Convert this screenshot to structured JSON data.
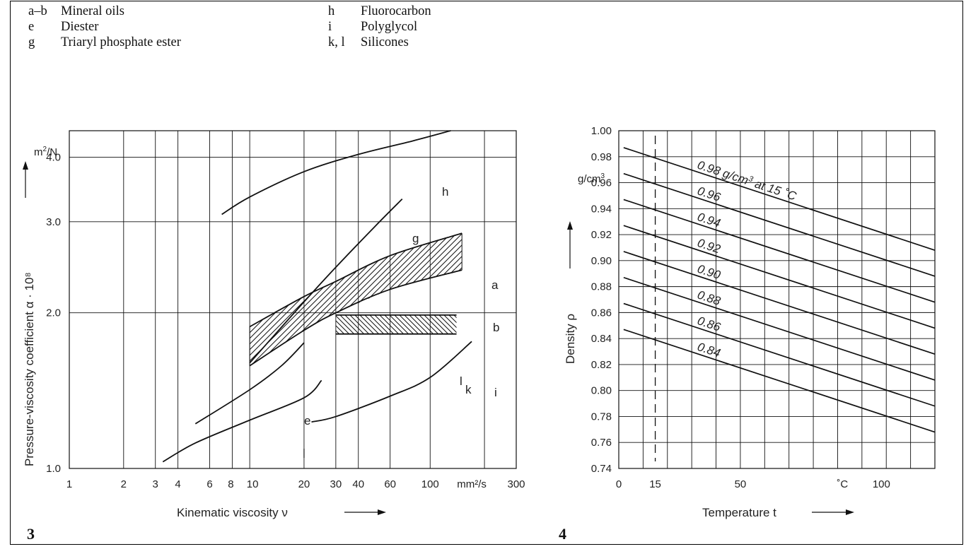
{
  "legend": [
    {
      "key": "a–b",
      "name": "Mineral oils"
    },
    {
      "key": "e",
      "name": "Diester"
    },
    {
      "key": "g",
      "name": "Triaryl phosphate ester"
    },
    {
      "key": "h",
      "name": "Fluorocarbon"
    },
    {
      "key": "i",
      "name": "Polyglycol"
    },
    {
      "key": "k, l",
      "name": "Silicones"
    }
  ],
  "figures": {
    "left": "3",
    "right": "4"
  },
  "colors": {
    "line": "#111111",
    "grid": "#111111",
    "background": "#ffffff"
  },
  "chart_data": [
    {
      "type": "line",
      "ylabel": "Pressure-viscosity coefficient  α · 10⁸",
      "yunit": "m²/N",
      "xlabel": "Kinematic viscosity  ν",
      "xunit": "mm²/s",
      "xscale": "log",
      "yscale": "log",
      "xlim": [
        1,
        300
      ],
      "ylim": [
        1.0,
        4.5
      ],
      "xticks": [
        "1",
        "2",
        "3",
        "4",
        "6",
        "8",
        "10",
        "20",
        "30",
        "40",
        "60",
        "100",
        "mm²/s",
        "300"
      ],
      "yticks": [
        "1.0",
        "2.0",
        "3.0",
        "4.0"
      ],
      "grid": true,
      "series": [
        {
          "name": "h",
          "points": [
            [
              7,
              3.1
            ],
            [
              10,
              3.35
            ],
            [
              20,
              3.75
            ],
            [
              40,
              4.05
            ],
            [
              80,
              4.3
            ],
            [
              130,
              4.5
            ]
          ]
        },
        {
          "name": "g",
          "points": [
            [
              10,
              1.6
            ],
            [
              20,
              2.1
            ],
            [
              30,
              2.45
            ],
            [
              50,
              2.95
            ],
            [
              70,
              3.32
            ]
          ]
        },
        {
          "name": "a",
          "points": [
            [
              10,
              1.88
            ],
            [
              20,
              2.15
            ],
            [
              30,
              2.3
            ],
            [
              60,
              2.58
            ],
            [
              150,
              2.85
            ]
          ]
        },
        {
          "name": "b",
          "points": [
            [
              10,
              1.58
            ],
            [
              20,
              1.85
            ],
            [
              30,
              2.0
            ],
            [
              60,
              2.22
            ],
            [
              150,
              2.42
            ]
          ]
        },
        {
          "name": "l",
          "points": [
            [
              30,
              1.98
            ],
            [
              140,
              1.98
            ]
          ]
        },
        {
          "name": "k",
          "points": [
            [
              30,
              1.82
            ],
            [
              140,
              1.82
            ]
          ]
        },
        {
          "name": "e",
          "points": [
            [
              3.3,
              1.03
            ],
            [
              5,
              1.12
            ],
            [
              10,
              1.24
            ],
            [
              20,
              1.37
            ],
            [
              25,
              1.48
            ]
          ]
        },
        {
          "name": "i",
          "points": [
            [
              22,
              1.23
            ],
            [
              30,
              1.26
            ],
            [
              60,
              1.38
            ],
            [
              100,
              1.5
            ],
            [
              170,
              1.76
            ]
          ]
        },
        {
          "name": "",
          "points": [
            [
              5,
              1.22
            ],
            [
              10,
              1.42
            ],
            [
              15,
              1.58
            ],
            [
              20,
              1.75
            ]
          ]
        }
      ],
      "band_label": "a–b Mineral oils (hatched)"
    },
    {
      "type": "line",
      "ylabel": "Density  ρ",
      "yunit": "g/cm³",
      "xlabel": "Temperature  t",
      "xunit": "˚C",
      "xlim": [
        0,
        130
      ],
      "ylim": [
        0.74,
        1.0
      ],
      "xticks": [
        "0",
        "15",
        "50",
        "˚C",
        "100"
      ],
      "yticks": [
        "1.00",
        "0.98",
        "0.96",
        "0.94",
        "0.92",
        "0.90",
        "0.88",
        "0.86",
        "0.84",
        "0.82",
        "0.80",
        "0.78",
        "0.76",
        "0.74"
      ],
      "grid": true,
      "reference_line": {
        "x": 15,
        "style": "dashed"
      },
      "series": [
        {
          "name": "0.98 g/cm³ at 15 ˚C",
          "label": "0.98 g/cm³ at 15 ˚C",
          "x": [
            2,
            130
          ],
          "y": [
            0.987,
            0.908
          ]
        },
        {
          "name": "0.96",
          "label": "0.96",
          "x": [
            2,
            130
          ],
          "y": [
            0.967,
            0.888
          ]
        },
        {
          "name": "0.94",
          "label": "0.94",
          "x": [
            2,
            130
          ],
          "y": [
            0.947,
            0.868
          ]
        },
        {
          "name": "0.92",
          "label": "0.92",
          "x": [
            2,
            130
          ],
          "y": [
            0.927,
            0.848
          ]
        },
        {
          "name": "0.90",
          "label": "0.90",
          "x": [
            2,
            130
          ],
          "y": [
            0.907,
            0.828
          ]
        },
        {
          "name": "0.88",
          "label": "0.88",
          "x": [
            2,
            130
          ],
          "y": [
            0.887,
            0.808
          ]
        },
        {
          "name": "0.86",
          "label": "0.86",
          "x": [
            2,
            130
          ],
          "y": [
            0.867,
            0.788
          ]
        },
        {
          "name": "0.84",
          "label": "0.84",
          "x": [
            2,
            130
          ],
          "y": [
            0.847,
            0.768
          ]
        }
      ]
    }
  ]
}
